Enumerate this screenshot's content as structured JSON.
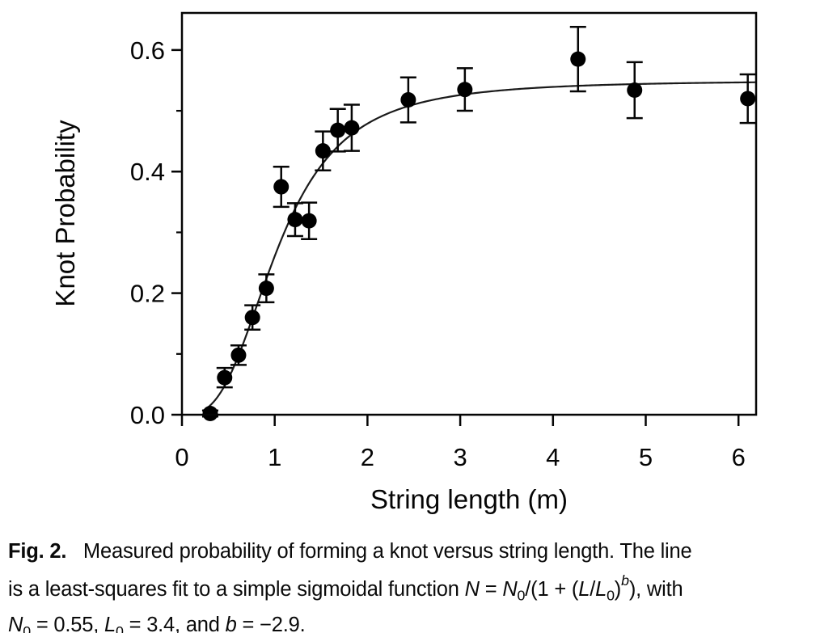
{
  "figure": {
    "label": "Fig. 2.",
    "caption_plain": "Fig. 2.   Measured probability of forming a knot versus string length. The line is a least-squares fit to a simple sigmoidal function N = N0/(1 + (L/L0)^b), with N0 = 0.55, L0 = 3.4, and b = −2.9.",
    "caption_segments": [
      {
        "text": "Fig. 2.",
        "style": "bold"
      },
      {
        "text": "   Measured probability of forming a knot versus string length. The line\nis a least-squares fit to a simple sigmoidal function ",
        "style": "normal"
      },
      {
        "text": "N",
        "style": "italic"
      },
      {
        "text": " = ",
        "style": "normal"
      },
      {
        "text": "N",
        "style": "italic"
      },
      {
        "text": "0",
        "style": "normal",
        "script": "sub"
      },
      {
        "text": "/(1 + (",
        "style": "normal"
      },
      {
        "text": "L",
        "style": "italic"
      },
      {
        "text": "/",
        "style": "normal"
      },
      {
        "text": "L",
        "style": "italic"
      },
      {
        "text": "0",
        "style": "normal",
        "script": "sub"
      },
      {
        "text": ")",
        "style": "normal"
      },
      {
        "text": "b",
        "style": "italic",
        "script": "sup"
      },
      {
        "text": "), with\n",
        "style": "normal"
      },
      {
        "text": "N",
        "style": "italic"
      },
      {
        "text": "0",
        "style": "normal",
        "script": "sub"
      },
      {
        "text": " = 0.55, ",
        "style": "normal"
      },
      {
        "text": "L",
        "style": "italic"
      },
      {
        "text": "0",
        "style": "normal",
        "script": "sub"
      },
      {
        "text": " = 3.4, and ",
        "style": "normal"
      },
      {
        "text": "b",
        "style": "italic"
      },
      {
        "text": " = −2.9.",
        "style": "normal"
      }
    ]
  },
  "chart_data": {
    "type": "scatter",
    "title": "",
    "xlabel": "String length (m)",
    "ylabel": "Knot Probability",
    "xlim": [
      0,
      6.19
    ],
    "ylim": [
      0,
      0.661
    ],
    "x_tick_values": [
      0,
      1,
      2,
      3,
      4,
      5,
      6
    ],
    "x_tick_labels": [
      "0",
      "1",
      "2",
      "3",
      "4",
      "5",
      "6"
    ],
    "y_major_tick_values": [
      0.0,
      0.2,
      0.4,
      0.6
    ],
    "y_major_tick_labels": [
      "0.0",
      "0.2",
      "0.4",
      "0.6"
    ],
    "y_minor_tick_values": [
      0.1,
      0.3,
      0.5
    ],
    "grid": false,
    "legend": "none",
    "marker_color": "#000000",
    "line_color": "#1a1a1a",
    "points": [
      {
        "x": 0.305,
        "y": 0.002,
        "err": 0.005
      },
      {
        "x": 0.46,
        "y": 0.061,
        "err": 0.016
      },
      {
        "x": 0.61,
        "y": 0.098,
        "err": 0.016
      },
      {
        "x": 0.76,
        "y": 0.16,
        "err": 0.02
      },
      {
        "x": 0.91,
        "y": 0.208,
        "err": 0.023
      },
      {
        "x": 1.07,
        "y": 0.375,
        "err": 0.033
      },
      {
        "x": 1.22,
        "y": 0.321,
        "err": 0.027
      },
      {
        "x": 1.37,
        "y": 0.319,
        "err": 0.03
      },
      {
        "x": 1.52,
        "y": 0.434,
        "err": 0.032
      },
      {
        "x": 1.68,
        "y": 0.468,
        "err": 0.035
      },
      {
        "x": 1.83,
        "y": 0.472,
        "err": 0.038
      },
      {
        "x": 2.44,
        "y": 0.518,
        "err": 0.037
      },
      {
        "x": 3.05,
        "y": 0.535,
        "err": 0.035
      },
      {
        "x": 4.27,
        "y": 0.585,
        "err": 0.053
      },
      {
        "x": 4.88,
        "y": 0.534,
        "err": 0.046
      },
      {
        "x": 6.1,
        "y": 0.52,
        "err": 0.04
      }
    ],
    "fit": {
      "N0": 0.55,
      "L0": 3.4,
      "b": -2.9
    }
  }
}
